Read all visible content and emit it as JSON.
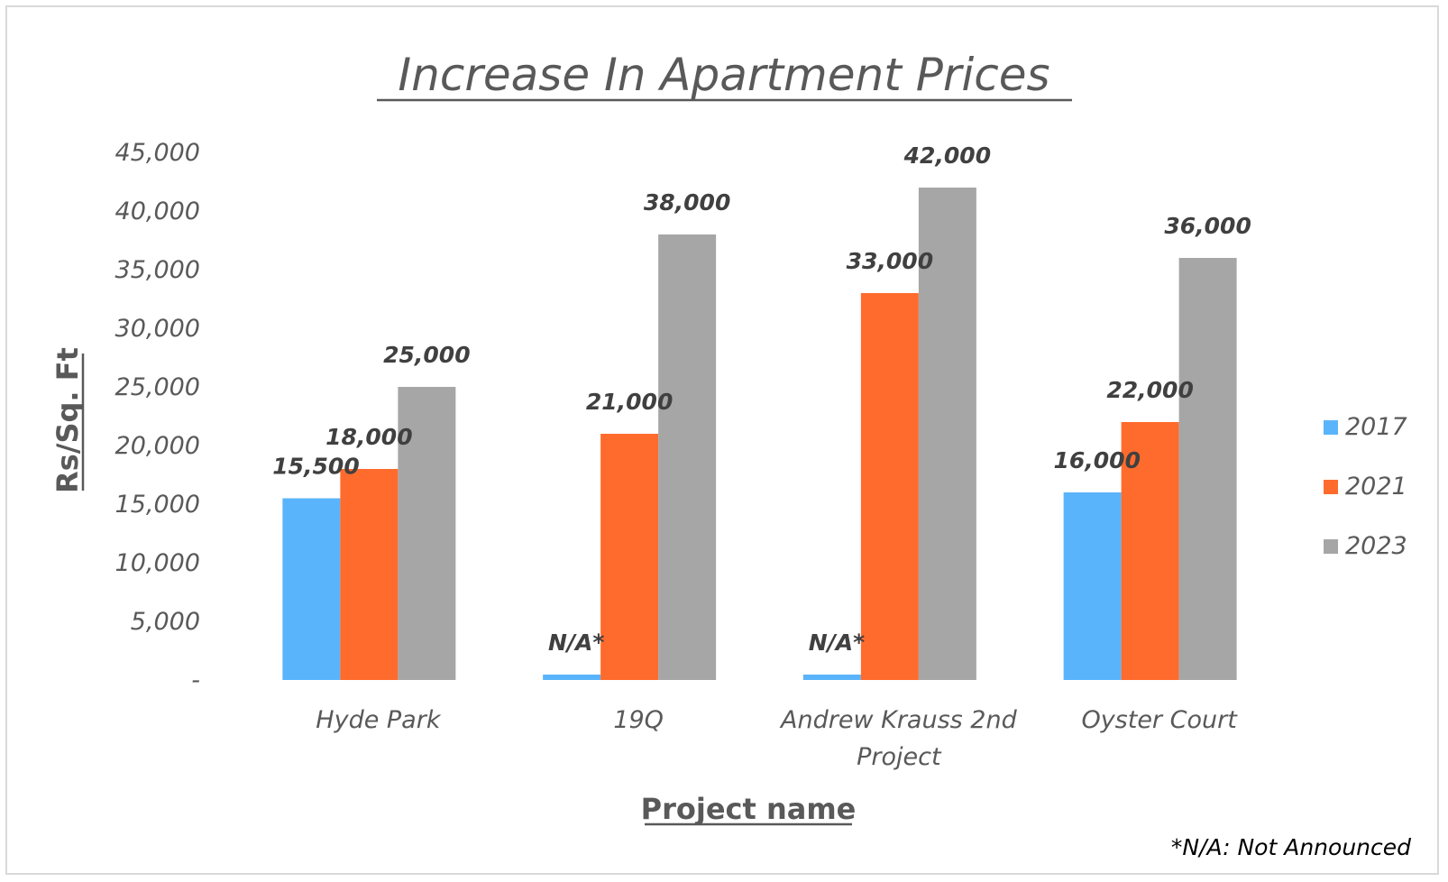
{
  "chart_data": {
    "type": "bar",
    "title": "Increase In Apartment Prices",
    "xlabel": "Project name",
    "ylabel": "Rs/Sq. Ft",
    "ylim": [
      0,
      45000
    ],
    "yticks": [
      "-",
      "5,000",
      "10,000",
      "15,000",
      "20,000",
      "25,000",
      "30,000",
      "35,000",
      "40,000",
      "45,000"
    ],
    "categories": [
      [
        "Hyde Park"
      ],
      [
        "19Q"
      ],
      [
        "Andrew Krauss 2nd",
        "Project"
      ],
      [
        "Oyster Court"
      ]
    ],
    "series": [
      {
        "name": "2017",
        "color": "#5ab4fb",
        "values": [
          15500,
          null,
          null,
          16000
        ],
        "labels": [
          "15,500",
          "N/A*",
          "N/A*",
          "16,000"
        ]
      },
      {
        "name": "2021",
        "color": "#ff6b2c",
        "values": [
          18000,
          21000,
          33000,
          22000
        ],
        "labels": [
          "18,000",
          "21,000",
          "33,000",
          "22,000"
        ]
      },
      {
        "name": "2023",
        "color": "#a6a6a6",
        "values": [
          25000,
          38000,
          42000,
          36000
        ],
        "labels": [
          "25,000",
          "38,000",
          "42,000",
          "36,000"
        ]
      }
    ],
    "grid": false,
    "legend_position": "right",
    "footnote": "*N/A: Not Announced"
  }
}
